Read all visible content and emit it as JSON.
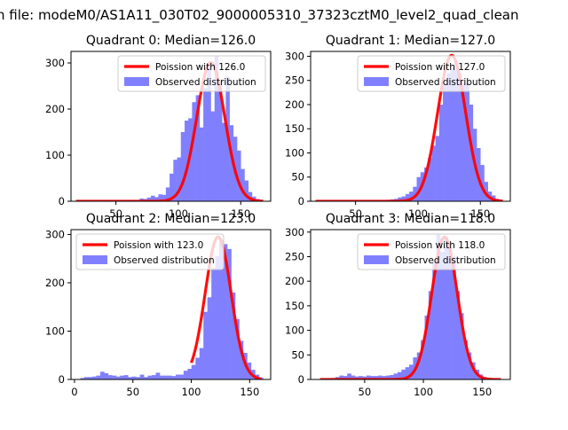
{
  "figure": {
    "suptitle": "n file: modeM0/AS1A11_030T02_9000005310_37323cztM0_level2_quad_clean"
  },
  "colors": {
    "poisson_line": "#ff0000",
    "hist_fill": "#8080ff",
    "axis": "#000000"
  },
  "chart_data": [
    {
      "type": "bar",
      "title": "Quadrant 0: Median=126.0",
      "xlim": [
        14,
        174
      ],
      "ylim": [
        0,
        325
      ],
      "xticks": [
        50,
        100,
        150
      ],
      "yticks": [
        0,
        100,
        200,
        300
      ],
      "legend_position": "top-right",
      "series": [
        {
          "name": "Poission with 126.0",
          "kind": "line",
          "lambda": 126.0,
          "x_range": [
            18,
            168
          ],
          "peak": 301
        },
        {
          "name": "Observed distribution",
          "kind": "histogram",
          "bin_width": 3,
          "bins": [
            [
              45,
              2
            ],
            [
              48,
              1
            ],
            [
              51,
              2
            ],
            [
              54,
              1
            ],
            [
              57,
              2
            ],
            [
              60,
              1
            ],
            [
              63,
              2
            ],
            [
              66,
              2
            ],
            [
              69,
              6
            ],
            [
              72,
              5
            ],
            [
              75,
              8
            ],
            [
              78,
              12
            ],
            [
              81,
              9
            ],
            [
              84,
              15
            ],
            [
              87,
              14
            ],
            [
              90,
              30
            ],
            [
              93,
              60
            ],
            [
              96,
              90
            ],
            [
              99,
              95
            ],
            [
              102,
              150
            ],
            [
              105,
              175
            ],
            [
              108,
              180
            ],
            [
              111,
              215
            ],
            [
              114,
              230
            ],
            [
              117,
              160
            ],
            [
              120,
              245
            ],
            [
              123,
              300
            ],
            [
              126,
              195
            ],
            [
              129,
              315
            ],
            [
              132,
              260
            ],
            [
              135,
              170
            ],
            [
              138,
              270
            ],
            [
              141,
              165
            ],
            [
              144,
              140
            ],
            [
              147,
              110
            ],
            [
              150,
              70
            ],
            [
              153,
              45
            ],
            [
              156,
              20
            ],
            [
              159,
              10
            ],
            [
              162,
              5
            ]
          ]
        }
      ]
    },
    {
      "type": "bar",
      "title": "Quadrant 1: Median=127.0",
      "xlim": [
        14,
        174
      ],
      "ylim": [
        0,
        310
      ],
      "xticks": [
        50,
        100,
        150
      ],
      "yticks": [
        0,
        50,
        100,
        150,
        200,
        250,
        300
      ],
      "legend_position": "top-right",
      "series": [
        {
          "name": "Poission with 127.0",
          "kind": "line",
          "lambda": 127.0,
          "x_range": [
            18,
            168
          ],
          "peak": 302
        },
        {
          "name": "Observed distribution",
          "kind": "histogram",
          "bin_width": 3,
          "bins": [
            [
              48,
              1
            ],
            [
              51,
              1
            ],
            [
              54,
              2
            ],
            [
              57,
              1
            ],
            [
              60,
              2
            ],
            [
              63,
              2
            ],
            [
              66,
              2
            ],
            [
              69,
              2
            ],
            [
              72,
              2
            ],
            [
              75,
              3
            ],
            [
              78,
              4
            ],
            [
              81,
              5
            ],
            [
              84,
              8
            ],
            [
              87,
              10
            ],
            [
              90,
              15
            ],
            [
              93,
              20
            ],
            [
              96,
              30
            ],
            [
              99,
              50
            ],
            [
              102,
              60
            ],
            [
              105,
              70
            ],
            [
              108,
              90
            ],
            [
              111,
              115
            ],
            [
              114,
              135
            ],
            [
              117,
              200
            ],
            [
              120,
              240
            ],
            [
              123,
              265
            ],
            [
              126,
              275
            ],
            [
              129,
              290
            ],
            [
              132,
              265
            ],
            [
              135,
              245
            ],
            [
              138,
              245
            ],
            [
              141,
              200
            ],
            [
              144,
              150
            ],
            [
              147,
              110
            ],
            [
              150,
              75
            ],
            [
              153,
              40
            ],
            [
              156,
              20
            ],
            [
              159,
              12
            ],
            [
              162,
              5
            ]
          ]
        }
      ]
    },
    {
      "type": "bar",
      "title": "Quadrant 2: Median=123.0",
      "xlim": [
        -3,
        168
      ],
      "ylim": [
        0,
        310
      ],
      "xticks": [
        0,
        50,
        100,
        150
      ],
      "yticks": [
        0,
        100,
        200,
        300
      ],
      "legend_position": "top-left",
      "series": [
        {
          "name": "Poission with 123.0",
          "kind": "line",
          "lambda": 123.0,
          "x_range": [
            100,
            160
          ],
          "peak": 295
        },
        {
          "name": "Observed distribution",
          "kind": "histogram",
          "bin_width": 3.4,
          "bins": [
            [
              5,
              3
            ],
            [
              8.4,
              5
            ],
            [
              11.8,
              5
            ],
            [
              15.2,
              6
            ],
            [
              18.6,
              8
            ],
            [
              22,
              16
            ],
            [
              25.4,
              13
            ],
            [
              28.8,
              9
            ],
            [
              32.2,
              8
            ],
            [
              35.6,
              6
            ],
            [
              39,
              8
            ],
            [
              42.4,
              9
            ],
            [
              45.8,
              5
            ],
            [
              49.2,
              6
            ],
            [
              52.6,
              5
            ],
            [
              56,
              10
            ],
            [
              59.4,
              5
            ],
            [
              62.8,
              8
            ],
            [
              66.2,
              9
            ],
            [
              69.6,
              14
            ],
            [
              73,
              8
            ],
            [
              76.4,
              8
            ],
            [
              79.8,
              8
            ],
            [
              83.2,
              7
            ],
            [
              86.6,
              10
            ],
            [
              90,
              10
            ],
            [
              93.4,
              18
            ],
            [
              96.8,
              22
            ],
            [
              100.2,
              30
            ],
            [
              103.6,
              45
            ],
            [
              107,
              65
            ],
            [
              110.4,
              140
            ],
            [
              113.8,
              170
            ],
            [
              117.2,
              230
            ],
            [
              120.6,
              255
            ],
            [
              124,
              290
            ],
            [
              127.4,
              280
            ],
            [
              130.8,
              270
            ],
            [
              134.2,
              180
            ],
            [
              137.6,
              125
            ],
            [
              141,
              80
            ],
            [
              144.4,
              55
            ],
            [
              147.8,
              35
            ],
            [
              151.2,
              20
            ],
            [
              154.6,
              10
            ],
            [
              158,
              4
            ]
          ]
        }
      ]
    },
    {
      "type": "bar",
      "title": "Quadrant 3: Median=118.0",
      "xlim": [
        4,
        174
      ],
      "ylim": [
        0,
        305
      ],
      "xticks": [
        50,
        100,
        150
      ],
      "yticks": [
        0,
        50,
        100,
        150,
        200,
        250,
        300
      ],
      "legend_position": "top-right",
      "series": [
        {
          "name": "Poission with 118.0",
          "kind": "line",
          "lambda": 118.0,
          "x_range": [
            12,
            166
          ],
          "peak": 290
        },
        {
          "name": "Observed distribution",
          "kind": "histogram",
          "bin_width": 3.3,
          "bins": [
            [
              12,
              1
            ],
            [
              15.3,
              2
            ],
            [
              18.6,
              2
            ],
            [
              21.9,
              3
            ],
            [
              25.2,
              5
            ],
            [
              28.5,
              8
            ],
            [
              31.8,
              7
            ],
            [
              35.1,
              12
            ],
            [
              38.4,
              8
            ],
            [
              41.7,
              6
            ],
            [
              45,
              7
            ],
            [
              48.3,
              6
            ],
            [
              51.6,
              8
            ],
            [
              54.9,
              7
            ],
            [
              58.2,
              7
            ],
            [
              61.5,
              8
            ],
            [
              64.8,
              7
            ],
            [
              68.1,
              8
            ],
            [
              71.4,
              9
            ],
            [
              74.7,
              12
            ],
            [
              78,
              15
            ],
            [
              81.3,
              20
            ],
            [
              84.6,
              25
            ],
            [
              87.9,
              30
            ],
            [
              91.2,
              45
            ],
            [
              94.5,
              55
            ],
            [
              97.8,
              80
            ],
            [
              101.1,
              130
            ],
            [
              104.4,
              180
            ],
            [
              107.7,
              240
            ],
            [
              111,
              295
            ],
            [
              114.3,
              260
            ],
            [
              117.6,
              290
            ],
            [
              120.9,
              270
            ],
            [
              124.2,
              250
            ],
            [
              127.5,
              180
            ],
            [
              130.8,
              135
            ],
            [
              134.1,
              80
            ],
            [
              137.4,
              55
            ],
            [
              140.7,
              35
            ],
            [
              144,
              20
            ],
            [
              147.3,
              10
            ],
            [
              150.6,
              5
            ]
          ]
        }
      ]
    }
  ]
}
